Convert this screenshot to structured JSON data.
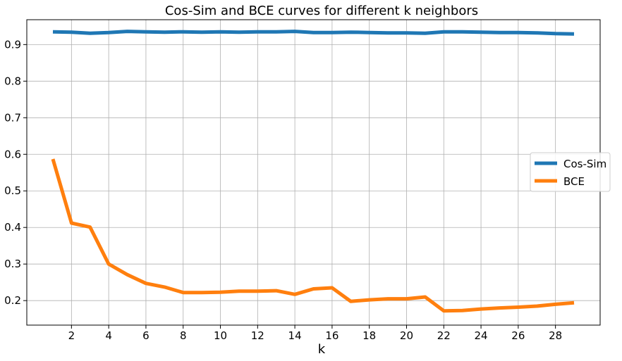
{
  "chart_data": {
    "type": "line",
    "title": "Cos-Sim and BCE curves for different k neighbors",
    "xlabel": "k",
    "ylabel": "",
    "x": [
      1,
      2,
      3,
      4,
      5,
      6,
      7,
      8,
      9,
      10,
      11,
      12,
      13,
      14,
      15,
      16,
      17,
      18,
      19,
      20,
      21,
      22,
      23,
      24,
      25,
      26,
      27,
      28,
      29
    ],
    "xticks": [
      2,
      4,
      6,
      8,
      10,
      12,
      14,
      16,
      18,
      20,
      22,
      24,
      26,
      28
    ],
    "xlim": [
      -0.4,
      30.4
    ],
    "yticks": [
      0.2,
      0.3,
      0.4,
      0.5,
      0.6,
      0.7,
      0.8,
      0.9
    ],
    "ylim": [
      0.133,
      0.968
    ],
    "grid": true,
    "legend_position": "center-right",
    "series": [
      {
        "name": "Cos-Sim",
        "color": "#1f77b4",
        "values": [
          0.935,
          0.934,
          0.931,
          0.933,
          0.936,
          0.935,
          0.934,
          0.935,
          0.934,
          0.935,
          0.934,
          0.935,
          0.935,
          0.936,
          0.933,
          0.933,
          0.934,
          0.933,
          0.932,
          0.932,
          0.931,
          0.935,
          0.935,
          0.934,
          0.933,
          0.933,
          0.932,
          0.93,
          0.929
        ]
      },
      {
        "name": "BCE",
        "color": "#ff7f0e",
        "values": [
          0.587,
          0.412,
          0.401,
          0.3,
          0.271,
          0.247,
          0.237,
          0.222,
          0.222,
          0.223,
          0.226,
          0.226,
          0.227,
          0.217,
          0.232,
          0.235,
          0.198,
          0.202,
          0.205,
          0.205,
          0.21,
          0.172,
          0.173,
          0.177,
          0.18,
          0.182,
          0.185,
          0.19,
          0.194
        ]
      }
    ]
  }
}
